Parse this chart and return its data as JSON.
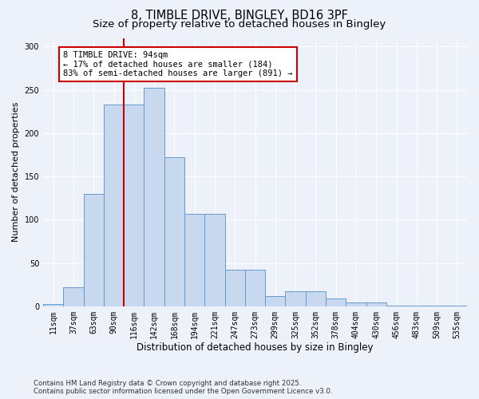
{
  "title_line1": "8, TIMBLE DRIVE, BINGLEY, BD16 3PF",
  "title_line2": "Size of property relative to detached houses in Bingley",
  "xlabel": "Distribution of detached houses by size in Bingley",
  "ylabel": "Number of detached properties",
  "bins": [
    "11sqm",
    "37sqm",
    "63sqm",
    "90sqm",
    "116sqm",
    "142sqm",
    "168sqm",
    "194sqm",
    "221sqm",
    "247sqm",
    "273sqm",
    "299sqm",
    "325sqm",
    "352sqm",
    "378sqm",
    "404sqm",
    "430sqm",
    "456sqm",
    "483sqm",
    "509sqm",
    "535sqm"
  ],
  "values": [
    3,
    22,
    130,
    233,
    233,
    252,
    172,
    107,
    107,
    42,
    42,
    12,
    17,
    17,
    9,
    4,
    4,
    1,
    1,
    1,
    1
  ],
  "bar_color": "#c8d9ef",
  "bar_edge_color": "#6699cc",
  "annotation_text": "8 TIMBLE DRIVE: 94sqm\n← 17% of detached houses are smaller (184)\n83% of semi-detached houses are larger (891) →",
  "annotation_box_color": "white",
  "annotation_box_edge": "#cc0000",
  "ylim": [
    0,
    310
  ],
  "yticks": [
    0,
    50,
    100,
    150,
    200,
    250,
    300
  ],
  "footer": "Contains HM Land Registry data © Crown copyright and database right 2025.\nContains public sector information licensed under the Open Government Licence v3.0.",
  "bg_color": "#edf1f9",
  "grid_color": "#ffffff",
  "title_fontsize": 10.5,
  "subtitle_fontsize": 9.5,
  "tick_fontsize": 7,
  "annotation_fontsize": 7.5,
  "ylabel_fontsize": 8,
  "xlabel_fontsize": 8.5
}
